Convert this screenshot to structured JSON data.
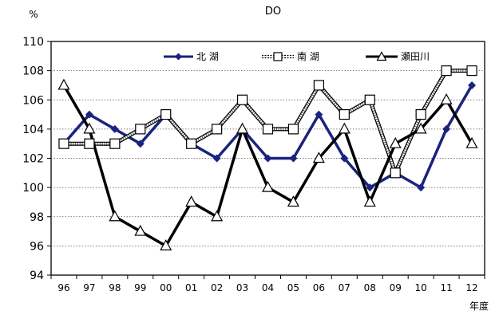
{
  "chart_data": {
    "type": "line",
    "title": "DO",
    "ylabel": "%",
    "xlabel": "年度",
    "categories": [
      "96",
      "97",
      "98",
      "99",
      "00",
      "01",
      "02",
      "03",
      "04",
      "05",
      "06",
      "07",
      "08",
      "09",
      "10",
      "11",
      "12"
    ],
    "ylim": [
      94,
      110
    ],
    "yticks": [
      94,
      96,
      98,
      100,
      102,
      104,
      106,
      108,
      110
    ],
    "grid": true,
    "legend_position": "top-right",
    "series": [
      {
        "name": "北 湖",
        "color": "#1a237e",
        "marker": "diamond",
        "line_style": "solid",
        "values": [
          103,
          105,
          104,
          103,
          105,
          103,
          102,
          104,
          102,
          102,
          105,
          102,
          100,
          101,
          100,
          104,
          107
        ]
      },
      {
        "name": "南 湖",
        "color": "#000000",
        "marker": "square",
        "line_style": "dotted-double",
        "values": [
          103,
          103,
          103,
          104,
          105,
          103,
          104,
          106,
          104,
          104,
          107,
          105,
          106,
          101,
          105,
          108,
          108
        ]
      },
      {
        "name": "瀬田川",
        "color": "#000000",
        "marker": "triangle",
        "line_style": "solid",
        "values": [
          107,
          104,
          98,
          97,
          96,
          99,
          98,
          104,
          100,
          99,
          102,
          104,
          99,
          103,
          104,
          106,
          103
        ]
      }
    ]
  }
}
